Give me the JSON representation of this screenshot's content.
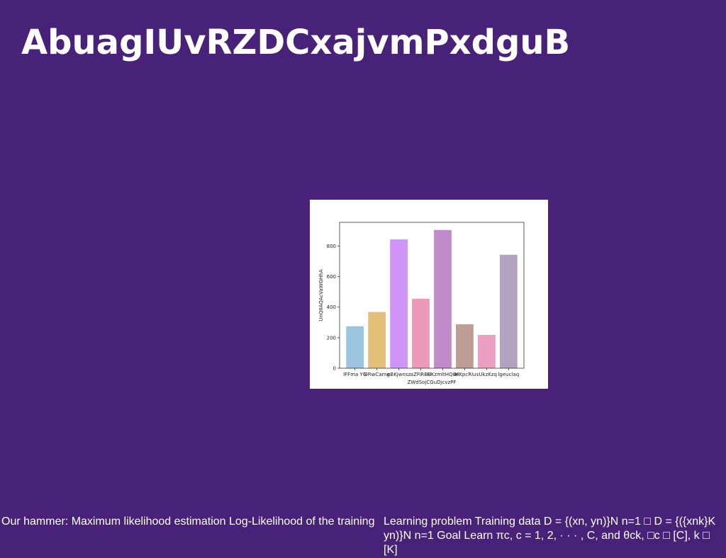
{
  "slide": {
    "title": "AbuagIUvRZDCxajvmPxdguB",
    "footer_left": "Our hammer: Maximum likelihood estimation Log-Likelihood of the training",
    "footer_right": "Learning problem Training data D = {(xn, yn)}N n=1 □ D = {({xnk}K yn)}N n=1 Goal Learn πc, c = 1, 2, · · · , C, and θck, □c □ [C], k □ [K]"
  },
  "colors": {
    "background": "#482278",
    "card": "#ffffff"
  },
  "chart_data": {
    "type": "bar",
    "title": "",
    "xlabel": "ZWdSojCGuDjcvzPF",
    "ylabel": "UnQIIAQAcVaWGHhA",
    "categories": [
      "IFFma YG",
      "DRwCamg",
      "eBKjwnsz",
      "aZFiRBH",
      "GKzmltHQse",
      "lMKpcRlu",
      "sUkzKzq",
      "lgeuclaq"
    ],
    "values": [
      275,
      368,
      843,
      455,
      905,
      288,
      218,
      743
    ],
    "colors": [
      "#9cc3e0",
      "#e4bf7a",
      "#cf94f8",
      "#ec98b6",
      "#c08acb",
      "#be9e94",
      "#eb9fc0",
      "#b4a2c3"
    ],
    "ylim": [
      0,
      955
    ],
    "yticks": [
      0,
      200,
      400,
      600,
      800
    ],
    "grid": false,
    "legend": "none"
  }
}
